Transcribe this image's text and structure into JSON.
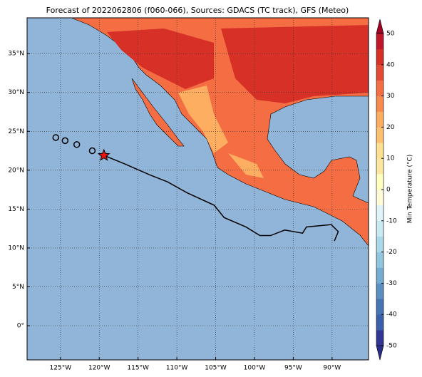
{
  "chart_data": {
    "type": "map",
    "title": "Forecast of 2022062806 (f060-066), Sources: GDACS (TC track), GFS (Meteo)",
    "xlim": [
      -129.3,
      -85.3
    ],
    "ylim": [
      -4.4,
      39.6
    ],
    "xticks": [
      {
        "value": -125,
        "label": "125°W"
      },
      {
        "value": -120,
        "label": "120°W"
      },
      {
        "value": -115,
        "label": "115°W"
      },
      {
        "value": -110,
        "label": "110°W"
      },
      {
        "value": -105,
        "label": "105°W"
      },
      {
        "value": -100,
        "label": "100°W"
      },
      {
        "value": -95,
        "label": "95°W"
      },
      {
        "value": -90,
        "label": "90°W"
      }
    ],
    "yticks": [
      {
        "value": 0,
        "label": "0°"
      },
      {
        "value": 5,
        "label": "5°N"
      },
      {
        "value": 10,
        "label": "10°N"
      },
      {
        "value": 15,
        "label": "15°N"
      },
      {
        "value": 20,
        "label": "20°N"
      },
      {
        "value": 25,
        "label": "25°N"
      },
      {
        "value": 30,
        "label": "30°N"
      },
      {
        "value": 35,
        "label": "35°N"
      }
    ],
    "grid": true,
    "track": {
      "lon": [
        -119.4,
        -116.7,
        -113.5,
        -111.2,
        -108.7,
        -105.2,
        -103.9,
        -101.1,
        -99.3,
        -97.9,
        -96.1,
        -93.8,
        -93.3,
        -90.1,
        -89.2,
        -89.7
      ],
      "lat": [
        21.9,
        20.8,
        19.4,
        18.5,
        17.1,
        15.5,
        13.9,
        12.7,
        11.6,
        11.6,
        12.3,
        11.9,
        12.7,
        13.0,
        12.1,
        10.9
      ],
      "color": "#000000"
    },
    "past_positions": {
      "lon": [
        -125.6,
        -124.4,
        -122.9,
        -120.9
      ],
      "lat": [
        24.2,
        23.8,
        23.3,
        22.5
      ]
    },
    "current_position": {
      "lon": -119.4,
      "lat": 21.9,
      "color": "#ee1111"
    },
    "colorbar": {
      "label": "Min Temperature (°C)",
      "lim": [
        -50,
        50
      ],
      "ticks": [
        -50,
        -40,
        -30,
        -20,
        -10,
        0,
        10,
        20,
        30,
        40,
        50
      ],
      "colors": [
        "#2a2f8c",
        "#313695",
        "#3a5fab",
        "#4575b4",
        "#5b8fc3",
        "#74add1",
        "#92c5de",
        "#abd9e9",
        "#c9e8f1",
        "#e0f3f8",
        "#fffbd8",
        "#ffffbf",
        "#fee8a0",
        "#fee090",
        "#fdc070",
        "#fdae61",
        "#f88a4e",
        "#f46d43",
        "#e34a33",
        "#d73027",
        "#c0162a",
        "#a50026"
      ]
    }
  }
}
